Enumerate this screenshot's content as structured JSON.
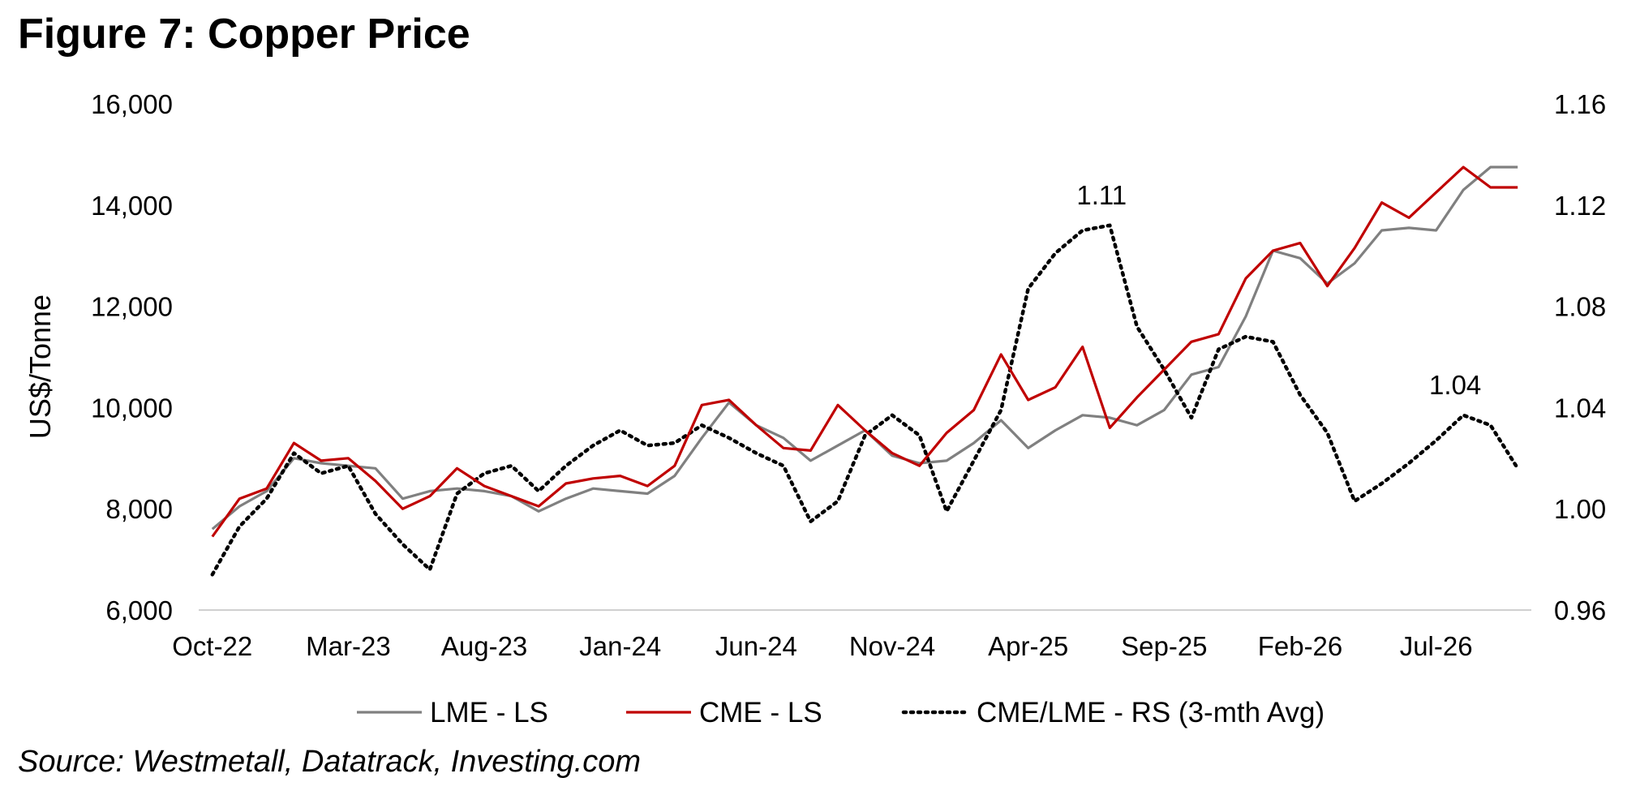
{
  "figure": {
    "title": "Figure 7: Copper Price",
    "source": "Source: Westmetall, Datatrack, Investing.com"
  },
  "chart_data": {
    "type": "line",
    "ylabel": "US$/Tonne",
    "y_left": {
      "min": 6000,
      "max": 16000,
      "ticks": [
        6000,
        8000,
        10000,
        12000,
        14000,
        16000
      ],
      "tick_labels": [
        "6,000",
        "8,000",
        "10,000",
        "12,000",
        "14,000",
        "16,000"
      ]
    },
    "y_right": {
      "min": 0.96,
      "max": 1.16,
      "ticks": [
        0.96,
        1.0,
        1.04,
        1.08,
        1.12,
        1.16
      ],
      "tick_labels": [
        "0.96",
        "1.00",
        "1.04",
        "1.08",
        "1.12",
        "1.16"
      ]
    },
    "x_tick_labels": [
      "Oct-22",
      "Mar-23",
      "Aug-23",
      "Jan-24",
      "Jun-24",
      "Nov-24",
      "Apr-25",
      "Sep-25",
      "Feb-26",
      "Jul-26"
    ],
    "x_tick_indices": [
      0,
      5,
      10,
      15,
      20,
      25,
      30,
      35,
      40,
      45
    ],
    "categories": [
      "Oct-22",
      "Nov-22",
      "Dec-22",
      "Jan-23",
      "Feb-23",
      "Mar-23",
      "Apr-23",
      "May-23",
      "Jun-23",
      "Jul-23",
      "Aug-23",
      "Sep-23",
      "Oct-23",
      "Nov-23",
      "Dec-23",
      "Jan-24",
      "Feb-24",
      "Mar-24",
      "Apr-24",
      "May-24",
      "Jun-24",
      "Jul-24",
      "Aug-24",
      "Sep-24",
      "Oct-24",
      "Nov-24",
      "Dec-24",
      "Jan-25",
      "Feb-25",
      "Mar-25",
      "Apr-25",
      "May-25",
      "Jun-25",
      "Jul-25",
      "Aug-25",
      "Sep-25",
      "Oct-25",
      "Nov-25",
      "Dec-25",
      "Jan-26",
      "Feb-26",
      "Mar-26",
      "Apr-26",
      "May-26",
      "Jun-26",
      "Jul-26",
      "Aug-26",
      "Sep-26",
      "Oct-26"
    ],
    "series": [
      {
        "name": "LME - LS",
        "axis": "left",
        "color": "#808080",
        "style": "solid",
        "values": [
          7600,
          8050,
          8350,
          9000,
          8900,
          8850,
          8800,
          8200,
          8350,
          8400,
          8350,
          8250,
          7950,
          8200,
          8400,
          8350,
          8300,
          8650,
          9400,
          10100,
          9650,
          9400,
          8950,
          9250,
          9550,
          9050,
          8900,
          8950,
          9300,
          9750,
          9200,
          9550,
          9850,
          9800,
          9650,
          9950,
          10650,
          10800,
          11800,
          13100,
          12950,
          12450,
          12850,
          13500,
          13550,
          13500,
          14300,
          14750,
          14750
        ]
      },
      {
        "name": "CME - LS",
        "axis": "left",
        "color": "#c00000",
        "style": "solid",
        "values": [
          7450,
          8200,
          8400,
          9300,
          8950,
          9000,
          8550,
          8000,
          8250,
          8800,
          8450,
          8250,
          8050,
          8500,
          8600,
          8650,
          8450,
          8850,
          10050,
          10150,
          9650,
          9200,
          9150,
          10050,
          9550,
          9100,
          8850,
          9500,
          9950,
          11050,
          10150,
          10400,
          11200,
          9600,
          10200,
          10750,
          11300,
          11450,
          12550,
          13100,
          13250,
          12400,
          13150,
          14050,
          13750,
          14250,
          14750,
          14350,
          14350
        ]
      },
      {
        "name": "CME/LME - RS (3-mth Avg)",
        "axis": "right",
        "color": "#000000",
        "style": "dotted",
        "values": [
          0.974,
          0.993,
          1.004,
          1.022,
          1.014,
          1.017,
          0.998,
          0.986,
          0.976,
          1.006,
          1.014,
          1.017,
          1.007,
          1.017,
          1.025,
          1.031,
          1.025,
          1.026,
          1.033,
          1.028,
          1.022,
          1.017,
          0.995,
          1.003,
          1.029,
          1.037,
          1.029,
          0.999,
          1.019,
          1.039,
          1.087,
          1.101,
          1.11,
          1.112,
          1.072,
          1.055,
          1.036,
          1.063,
          1.068,
          1.066,
          1.045,
          1.03,
          1.003,
          1.01,
          1.018,
          1.027,
          1.037,
          1.033,
          1.016
        ]
      }
    ],
    "annotations": [
      {
        "text": "1.11",
        "series": "CME/LME - RS (3-mth Avg)",
        "index": 33
      },
      {
        "text": "1.04",
        "series": "CME/LME - RS (3-mth Avg)",
        "index": 46
      }
    ],
    "legend": {
      "position": "bottom",
      "entries": [
        "LME - LS",
        "CME - LS",
        "CME/LME - RS (3-mth Avg)"
      ]
    },
    "grid": false
  }
}
